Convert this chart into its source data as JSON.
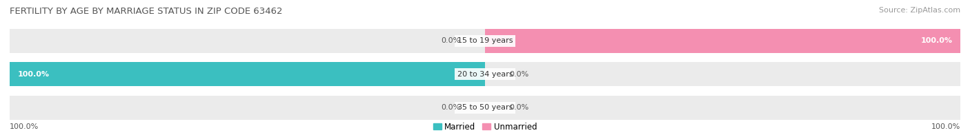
{
  "title": "FERTILITY BY AGE BY MARRIAGE STATUS IN ZIP CODE 63462",
  "source": "Source: ZipAtlas.com",
  "categories": [
    "15 to 19 years",
    "20 to 34 years",
    "35 to 50 years"
  ],
  "married_values": [
    0.0,
    100.0,
    0.0
  ],
  "unmarried_values": [
    100.0,
    0.0,
    0.0
  ],
  "married_color": "#3bbfc0",
  "unmarried_color": "#f48fb1",
  "bar_bg_color": "#ebebeb",
  "bar_bg_color2": "#e0e0e0",
  "title_fontsize": 9.5,
  "source_fontsize": 8,
  "label_fontsize": 8,
  "value_fontsize": 8,
  "legend_fontsize": 8.5,
  "figsize": [
    14.06,
    1.96
  ],
  "dpi": 100,
  "bottom_left_label": "100.0%",
  "bottom_right_label": "100.0%"
}
